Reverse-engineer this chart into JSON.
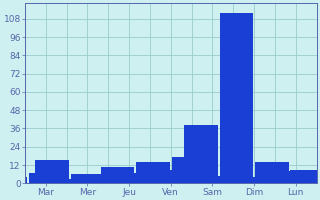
{
  "days": [
    "Mar",
    "Mer",
    "Jeu",
    "Ven",
    "Sam",
    "Dim",
    "Lun"
  ],
  "bars_per_day": [
    [
      4,
      7,
      3
    ],
    [
      15,
      6,
      5
    ],
    [
      3,
      6,
      7,
      7,
      7
    ],
    [
      11,
      14,
      17,
      5
    ],
    [
      9,
      5,
      4,
      4
    ],
    [
      38,
      112,
      14,
      9
    ],
    [
      3,
      8,
      6
    ]
  ],
  "bar_color": "#1a3fd4",
  "bar_edge_color": "#4477ff",
  "bg_color": "#cff0f0",
  "grid_color": "#99cccc",
  "axis_color": "#5566aa",
  "tick_label_color": "#2244bb",
  "ylim": [
    0,
    118
  ],
  "yticks": [
    0,
    12,
    24,
    36,
    48,
    60,
    72,
    84,
    96,
    108
  ],
  "figsize": [
    3.2,
    2.0
  ],
  "dpi": 100
}
